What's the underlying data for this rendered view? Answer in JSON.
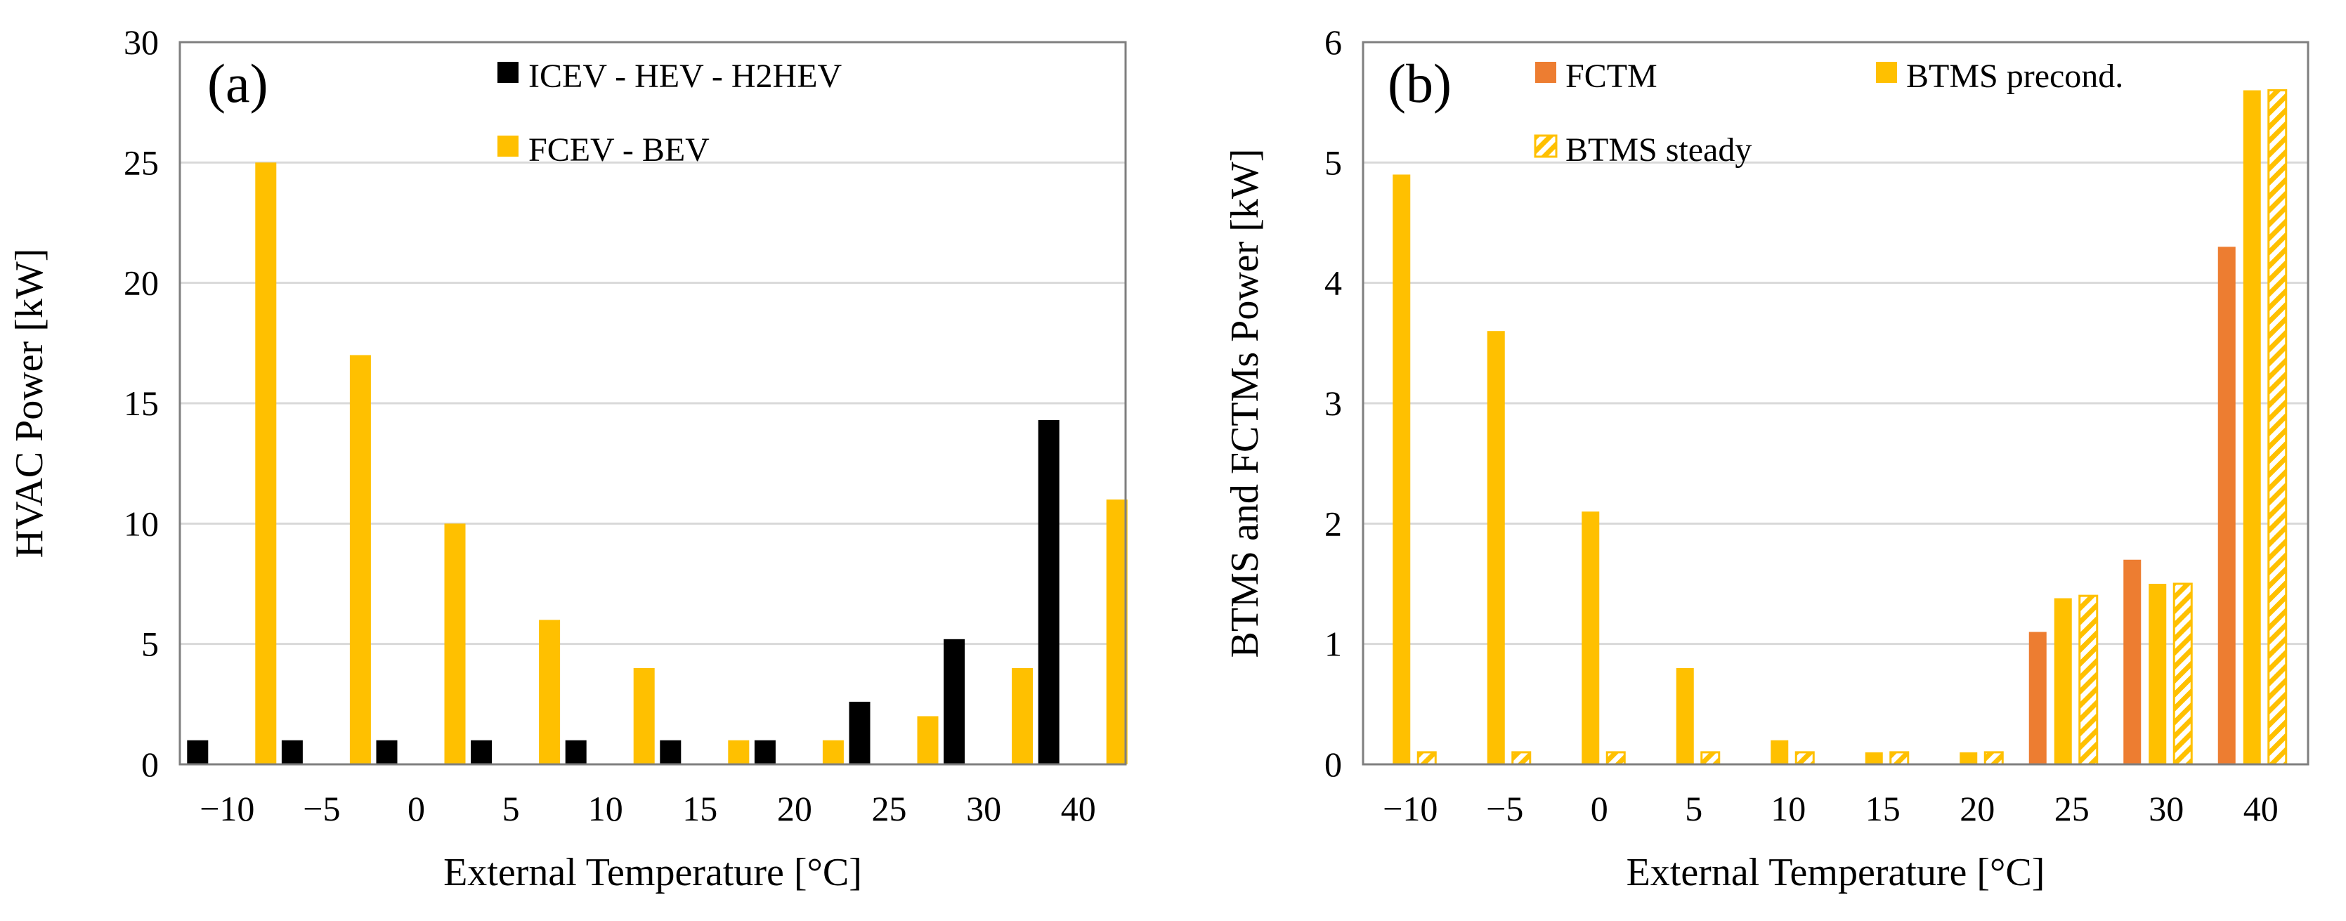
{
  "colors": {
    "black": "#000000",
    "yellow": "#FFC000",
    "orange": "#ED7D31",
    "grid": "#D9D9D9",
    "frame": "#7F7F7F"
  },
  "chart_data": [
    {
      "type": "bar",
      "panel_label": "(a)",
      "title": "",
      "xlabel": "External Temperature [°C]",
      "ylabel": "HVAC Power [kW]",
      "ylim": [
        0,
        30
      ],
      "yticks": [
        0,
        5,
        10,
        15,
        20,
        25,
        30
      ],
      "ytick_labels": [
        "0",
        "5",
        "10",
        "15",
        "20",
        "25",
        "30"
      ],
      "grid": true,
      "legend_position": "top-center",
      "categories": [
        "−10",
        "−5",
        "0",
        "5",
        "10",
        "15",
        "20",
        "25",
        "30",
        "40"
      ],
      "series": [
        {
          "name": "ICEV - HEV - H2HEV",
          "color": "#000000",
          "pattern": "solid",
          "values": [
            1,
            1,
            1,
            1,
            1,
            1,
            1,
            2.6,
            5.2,
            14.3
          ]
        },
        {
          "name": "FCEV - BEV",
          "color": "#FFC000",
          "pattern": "solid",
          "values": [
            25,
            17,
            10,
            6,
            4,
            1,
            1,
            2,
            4,
            11
          ]
        }
      ]
    },
    {
      "type": "bar",
      "panel_label": "(b)",
      "title": "",
      "xlabel": "External Temperature [°C]",
      "ylabel": "BTMS and FCTMs Power [kW]",
      "ylim": [
        0,
        6
      ],
      "yticks": [
        0,
        1,
        2,
        3,
        4,
        5,
        6
      ],
      "ytick_labels": [
        "0",
        "1",
        "2",
        "3",
        "4",
        "5",
        "6"
      ],
      "grid": true,
      "legend_position": "top",
      "categories": [
        "−10",
        "−5",
        "0",
        "5",
        "10",
        "15",
        "20",
        "25",
        "30",
        "40"
      ],
      "series": [
        {
          "name": "FCTM",
          "color": "#ED7D31",
          "pattern": "solid",
          "values": [
            0,
            0,
            0,
            0,
            0,
            0,
            0,
            1.1,
            1.7,
            4.3
          ]
        },
        {
          "name": "BTMS precond.",
          "color": "#FFC000",
          "pattern": "solid",
          "values": [
            4.9,
            3.6,
            2.1,
            0.8,
            0.2,
            0.1,
            0.1,
            1.38,
            1.5,
            5.6
          ]
        },
        {
          "name": "BTMS steady",
          "color": "#FFC000",
          "pattern": "hatched",
          "values": [
            0.1,
            0.1,
            0.1,
            0.1,
            0.1,
            0.1,
            0.1,
            1.4,
            1.5,
            5.6
          ]
        }
      ]
    }
  ]
}
